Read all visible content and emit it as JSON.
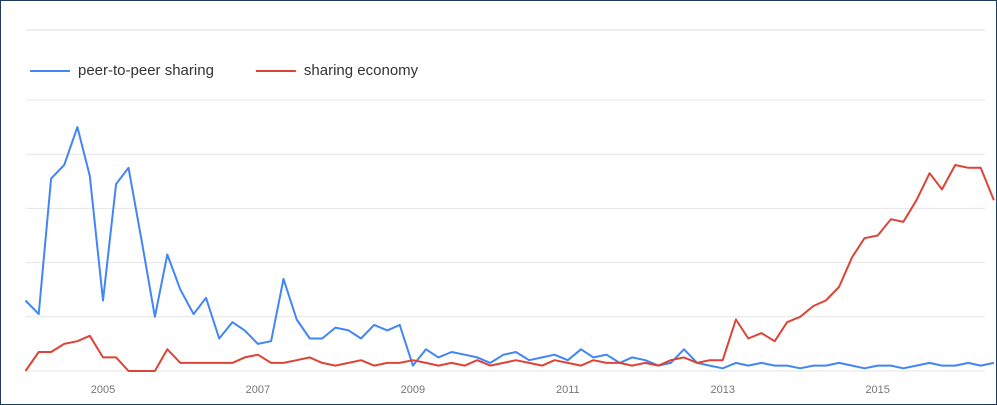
{
  "chart_data": {
    "type": "line",
    "x": [
      2004,
      2004.17,
      2004.33,
      2004.5,
      2004.67,
      2004.83,
      2005,
      2005.17,
      2005.33,
      2005.5,
      2005.67,
      2005.83,
      2006,
      2006.17,
      2006.33,
      2006.5,
      2006.67,
      2006.83,
      2007,
      2007.17,
      2007.33,
      2007.5,
      2007.67,
      2007.83,
      2008,
      2008.17,
      2008.33,
      2008.5,
      2008.67,
      2008.83,
      2009,
      2009.17,
      2009.33,
      2009.5,
      2009.67,
      2009.83,
      2010,
      2010.17,
      2010.33,
      2010.5,
      2010.67,
      2010.83,
      2011,
      2011.17,
      2011.33,
      2011.5,
      2011.67,
      2011.83,
      2012,
      2012.17,
      2012.33,
      2012.5,
      2012.67,
      2012.83,
      2013,
      2013.17,
      2013.33,
      2013.5,
      2013.67,
      2013.83,
      2014,
      2014.17,
      2014.33,
      2014.5,
      2014.67,
      2014.83,
      2015,
      2015.17,
      2015.33,
      2015.5,
      2015.67,
      2015.83,
      2016,
      2016.17,
      2016.33,
      2016.5
    ],
    "series": [
      {
        "name": "peer-to-peer sharing",
        "color": "#4285f4",
        "values": [
          26,
          21,
          71,
          76,
          90,
          72,
          26,
          69,
          75,
          48,
          20,
          43,
          30,
          21,
          27,
          12,
          18,
          15,
          10,
          11,
          34,
          19,
          12,
          12,
          16,
          15,
          12,
          17,
          15,
          17,
          2,
          8,
          5,
          7,
          6,
          5,
          3,
          6,
          7,
          4,
          5,
          6,
          4,
          8,
          5,
          6,
          3,
          5,
          4,
          2,
          3,
          8,
          3,
          2,
          1,
          3,
          2,
          3,
          2,
          2,
          1,
          2,
          2,
          3,
          2,
          1,
          2,
          2,
          1,
          2,
          3,
          2,
          2,
          3,
          2,
          3
        ]
      },
      {
        "name": "sharing economy",
        "color": "#db4437",
        "values": [
          0,
          7,
          7,
          10,
          11,
          13,
          5,
          5,
          0,
          0,
          0,
          8,
          3,
          3,
          3,
          3,
          3,
          5,
          6,
          3,
          3,
          4,
          5,
          3,
          2,
          3,
          4,
          2,
          3,
          3,
          4,
          3,
          2,
          3,
          2,
          4,
          2,
          3,
          4,
          3,
          2,
          4,
          3,
          2,
          4,
          3,
          3,
          2,
          3,
          2,
          4,
          5,
          3,
          4,
          4,
          19,
          12,
          14,
          11,
          18,
          20,
          24,
          26,
          31,
          42,
          49,
          50,
          56,
          55,
          63,
          73,
          67,
          76,
          75,
          75,
          63
        ]
      }
    ],
    "xlim": [
      2004,
      2016.54
    ],
    "xticks": [
      2005,
      2007,
      2009,
      2011,
      2013,
      2015
    ],
    "ylim": [
      0,
      100
    ],
    "yticks": [
      0,
      20,
      40,
      60,
      80,
      100
    ],
    "grid": true
  }
}
